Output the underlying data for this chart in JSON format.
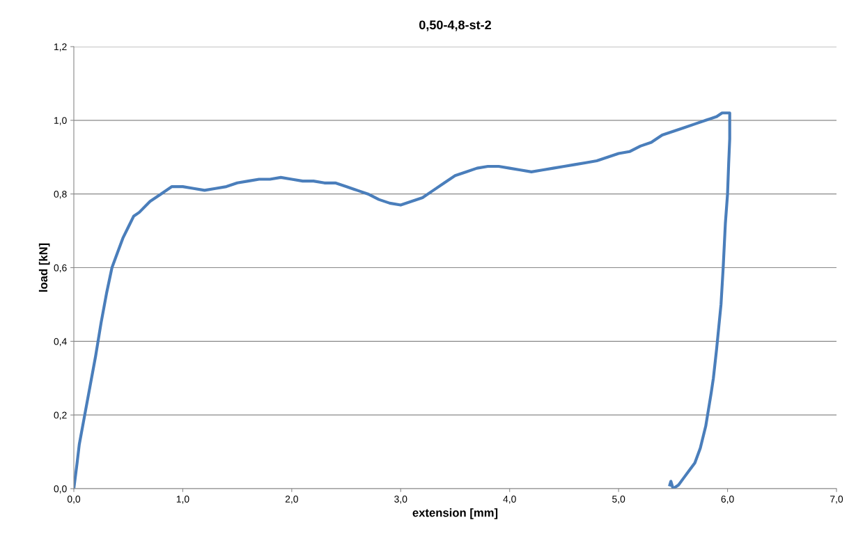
{
  "chart_data": {
    "type": "line",
    "title": "0,50-4,8-st-2",
    "xlabel": "extension [mm]",
    "ylabel": "load [kN]",
    "series": [
      {
        "color": "#4a7ebb",
        "x": [
          0,
          0.03,
          0.05,
          0.1,
          0.15,
          0.2,
          0.25,
          0.3,
          0.35,
          0.4,
          0.45,
          0.5,
          0.55,
          0.6,
          0.7,
          0.8,
          0.9,
          1.0,
          1.1,
          1.2,
          1.3,
          1.4,
          1.5,
          1.6,
          1.7,
          1.8,
          1.9,
          2.0,
          2.1,
          2.2,
          2.3,
          2.4,
          2.5,
          2.6,
          2.7,
          2.8,
          2.9,
          3.0,
          3.1,
          3.2,
          3.3,
          3.4,
          3.5,
          3.6,
          3.7,
          3.8,
          3.9,
          4.0,
          4.1,
          4.2,
          4.3,
          4.4,
          4.5,
          4.6,
          4.7,
          4.8,
          4.9,
          5.0,
          5.1,
          5.2,
          5.3,
          5.4,
          5.5,
          5.6,
          5.7,
          5.8,
          5.9,
          5.95,
          6.0,
          6.02,
          6.02,
          6.01,
          6.0,
          5.98,
          5.96,
          5.94,
          5.92,
          5.9,
          5.87,
          5.85,
          5.8,
          5.75,
          5.7,
          5.65,
          5.6,
          5.55,
          5.5,
          5.48,
          5.47
        ],
        "values": [
          0,
          0.07,
          0.12,
          0.2,
          0.28,
          0.36,
          0.45,
          0.53,
          0.6,
          0.64,
          0.68,
          0.71,
          0.74,
          0.75,
          0.78,
          0.8,
          0.82,
          0.82,
          0.815,
          0.81,
          0.815,
          0.82,
          0.83,
          0.835,
          0.84,
          0.84,
          0.845,
          0.84,
          0.835,
          0.835,
          0.83,
          0.83,
          0.82,
          0.81,
          0.8,
          0.785,
          0.775,
          0.77,
          0.78,
          0.79,
          0.81,
          0.83,
          0.85,
          0.86,
          0.87,
          0.875,
          0.875,
          0.87,
          0.865,
          0.86,
          0.865,
          0.87,
          0.875,
          0.88,
          0.885,
          0.89,
          0.9,
          0.91,
          0.915,
          0.93,
          0.94,
          0.96,
          0.97,
          0.98,
          0.99,
          1.0,
          1.01,
          1.02,
          1.02,
          1.02,
          0.95,
          0.88,
          0.8,
          0.72,
          0.6,
          0.5,
          0.44,
          0.38,
          0.3,
          0.26,
          0.17,
          0.11,
          0.07,
          0.05,
          0.03,
          0.01,
          0.0,
          0.02,
          0.01
        ]
      }
    ],
    "xlim": [
      0,
      7
    ],
    "xticks": [
      {
        "value": 0,
        "label": "0,0"
      },
      {
        "value": 1,
        "label": "1,0"
      },
      {
        "value": 2,
        "label": "2,0"
      },
      {
        "value": 3,
        "label": "3,0"
      },
      {
        "value": 4,
        "label": "4,0"
      },
      {
        "value": 5,
        "label": "5,0"
      },
      {
        "value": 6,
        "label": "6,0"
      },
      {
        "value": 7,
        "label": "7,0"
      }
    ],
    "ylim": [
      0,
      1.2
    ],
    "yticks": [
      {
        "value": 0,
        "label": "0,0"
      },
      {
        "value": 0.2,
        "label": "0,2"
      },
      {
        "value": 0.4,
        "label": "0,4"
      },
      {
        "value": 0.6,
        "label": "0,6"
      },
      {
        "value": 0.8,
        "label": "0,8"
      },
      {
        "value": 1.0,
        "label": "1,0"
      },
      {
        "value": 1.2,
        "label": "1,2"
      }
    ],
    "grid": "y",
    "marker": "none",
    "line_style": "solid"
  }
}
